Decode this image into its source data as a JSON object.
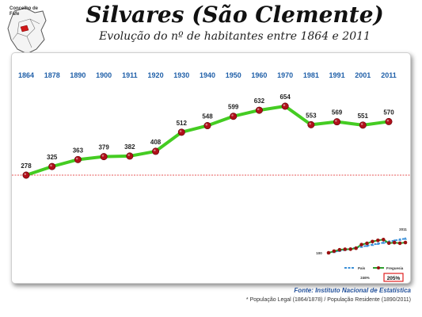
{
  "map": {
    "label_line1": "Concelho de",
    "label_line2": "Fafe"
  },
  "header": {
    "title": "Silvares (São Clemente)",
    "subtitle": "Evolução do nº de habitantes entre 1864 e 2011"
  },
  "chart_data": {
    "type": "line",
    "categories": [
      "1864",
      "1878",
      "1890",
      "1900",
      "1911",
      "1920",
      "1930",
      "1940",
      "1950",
      "1960",
      "1970",
      "1981",
      "1991",
      "2001",
      "2011"
    ],
    "series": [
      {
        "values": [
          278,
          325,
          363,
          379,
          382,
          408,
          512,
          548,
          599,
          632,
          654,
          553,
          569,
          551,
          570
        ]
      }
    ],
    "reference_line": 278,
    "colors": {
      "line": "#44cc22",
      "marker": "#b0101a",
      "year_labels": "#1f5fa8",
      "reference": "#e02020"
    },
    "inset": {
      "legend": [
        "País",
        "Freguesia"
      ],
      "labels": {
        "year_end": "2011",
        "start_index": "100",
        "pais_growth": "246%",
        "freguesia_growth": "205%"
      },
      "colors": {
        "pais": "#3a8fd8",
        "freguesia": "#2ea02e",
        "freguesia_marker": "#9a1010",
        "highlight_box": "#e02020"
      }
    }
  },
  "footer": {
    "source": "Fonte: Instituto Nacional de Estatística",
    "note": "* População Legal (1864/1878) / População Residente (1890/2011)"
  }
}
